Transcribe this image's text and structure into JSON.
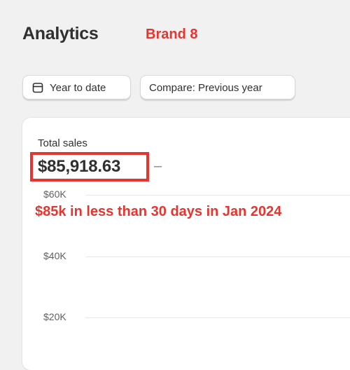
{
  "header": {
    "title": "Analytics",
    "annotation": "Brand 8"
  },
  "toolbar": {
    "date_range_label": "Year to date",
    "compare_label": "Compare: Previous year",
    "calendar_icon": "calendar-icon"
  },
  "card": {
    "metric_label": "Total sales",
    "metric_value": "$85,918.63",
    "metric_dash": "–",
    "callout": "$85k in less than 30 days in Jan 2024",
    "y_axis_labels": [
      "$60K",
      "$40K",
      "$20K"
    ]
  },
  "colors": {
    "annotation_red": "#e8342f",
    "text_primary": "#303030",
    "background": "#f1f1f1"
  }
}
